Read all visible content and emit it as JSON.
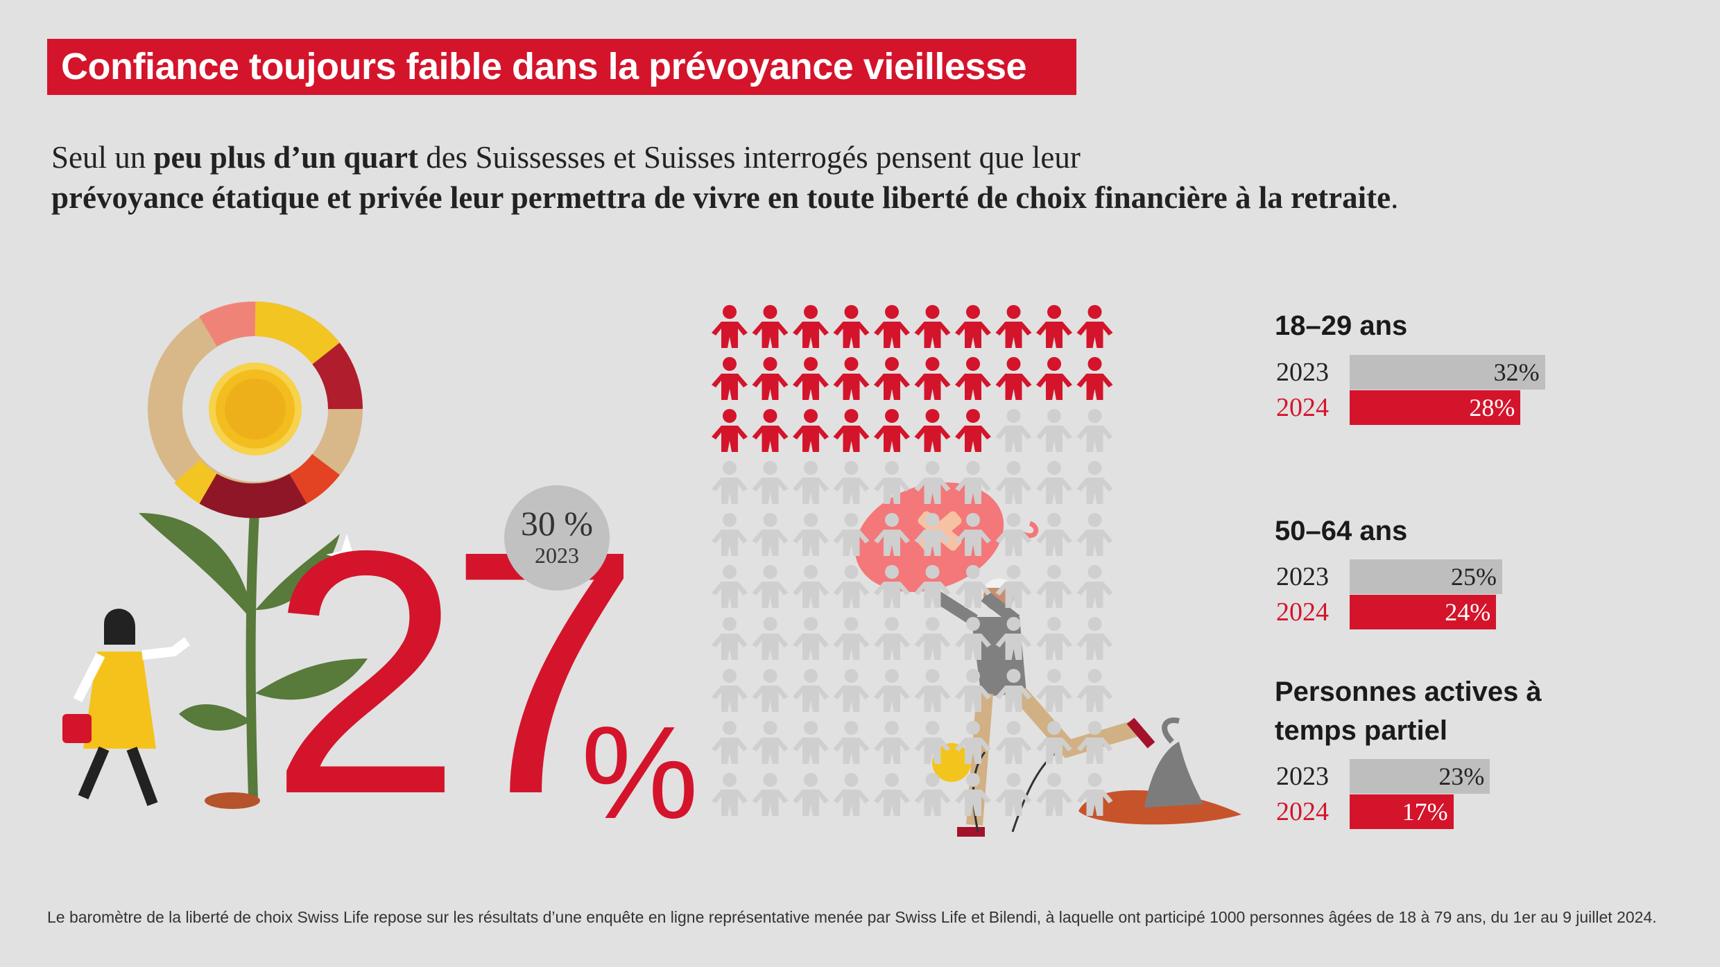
{
  "title": "Confiance toujours faible dans la prévoyance vieillesse",
  "intro": {
    "line1_a": "Seul un ",
    "line1_b": "peu plus d’un quart",
    "line1_c": " des Suissesses et Suisses interrogés pensent que leur",
    "line2_b": "prévoyance étatique et privée leur permettra de vivre en toute liberté de choix financière à la retraite",
    "line2_c": "."
  },
  "headline": {
    "value": "27",
    "unit": "%",
    "previous_value": "30 %",
    "previous_year": "2023"
  },
  "colors": {
    "accent": "#d4142b",
    "bar_2023": "#bebebe",
    "figure_grey": "#cfcfcf",
    "background": "#e1e1e1"
  },
  "icons": [
    "flower-illustration",
    "gardener-illustration",
    "person-with-piggy-bank-illustration",
    "dog-illustration",
    "coin-icon",
    "person-icon"
  ],
  "chart_data": [
    {
      "type": "pictogram",
      "total": 100,
      "highlighted": 27,
      "columns": 10
    },
    {
      "type": "bar",
      "orientation": "horizontal",
      "groups": [
        {
          "label": "18–29 ans",
          "bars": [
            {
              "year": "2023",
              "value": 32,
              "label": "32%"
            },
            {
              "year": "2024",
              "value": 28,
              "label": "28%"
            }
          ]
        },
        {
          "label": "50–64 ans",
          "bars": [
            {
              "year": "2023",
              "value": 25,
              "label": "25%"
            },
            {
              "year": "2024",
              "value": 24,
              "label": "24%"
            }
          ]
        },
        {
          "label": "Personnes actives à temps partiel",
          "bars": [
            {
              "year": "2023",
              "value": 23,
              "label": "23%"
            },
            {
              "year": "2024",
              "value": 17,
              "label": "17%"
            }
          ]
        }
      ]
    }
  ],
  "footnote": "Le baromètre de la liberté de choix Swiss Life repose sur les résultats d’une enquête en ligne représentative menée par Swiss Life et Bilendi, à laquelle ont participé 1000 personnes âgées de 18 à 79 ans, du 1er au 9 juillet 2024."
}
